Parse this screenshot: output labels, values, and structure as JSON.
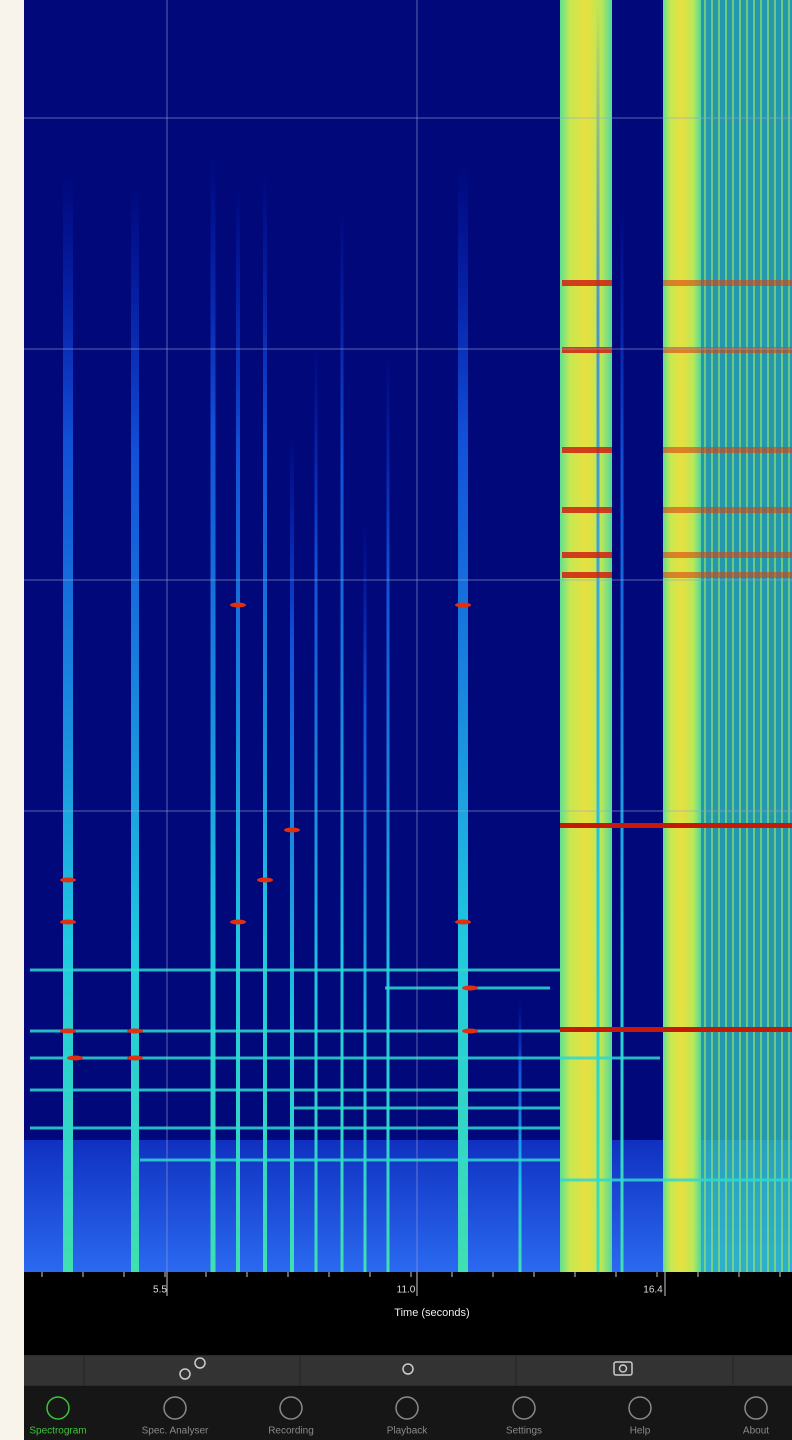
{
  "axis": {
    "ticks": [
      "5.5",
      "11.0",
      "16.4"
    ],
    "title": "Time (seconds)"
  },
  "tabs": [
    "Spectrogram",
    "Spec. Analyser",
    "Recording",
    "Playback",
    "Settings",
    "Help",
    "About"
  ]
}
